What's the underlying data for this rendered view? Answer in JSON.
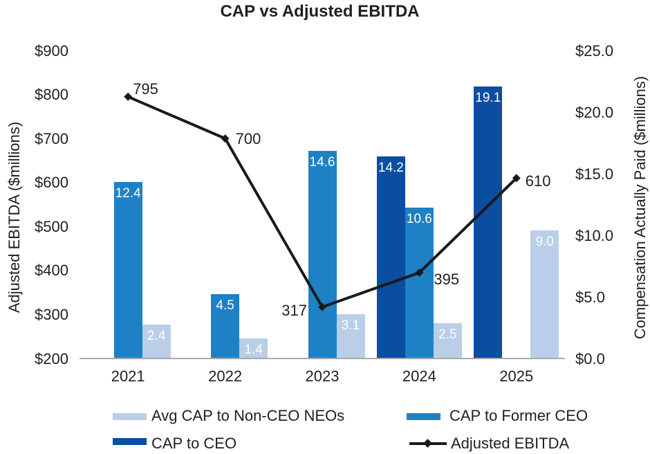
{
  "chart_data": {
    "type": "combo-bar-line",
    "title": "CAP vs Adjusted EBITDA",
    "categories": [
      "2021",
      "2022",
      "2023",
      "2024",
      "2025"
    ],
    "bar_series": [
      {
        "key": "ceo",
        "name": "CAP to CEO",
        "color": "#0b4da1",
        "axis": "right",
        "values": [
          null,
          null,
          null,
          14.2,
          19.1
        ],
        "labels": [
          "",
          "",
          "",
          "14.2",
          "19.1"
        ]
      },
      {
        "key": "former",
        "name": "CAP to Former CEO",
        "color": "#1f81c5",
        "axis": "right",
        "values": [
          12.4,
          4.5,
          14.6,
          10.6,
          null
        ],
        "labels": [
          "12.4",
          "4.5",
          "14.6",
          "10.6",
          ""
        ]
      },
      {
        "key": "neo",
        "name": "Avg CAP to Non-CEO NEOs",
        "color": "#bbcee9",
        "axis": "right",
        "values": [
          2.4,
          1.4,
          3.1,
          2.5,
          9.0
        ],
        "labels": [
          "2.4",
          "1.4",
          "3.1",
          "2.5",
          "9.0"
        ]
      }
    ],
    "line_series": {
      "key": "ebitda",
      "name": "Adjusted EBITDA",
      "color": "#1a1a1a",
      "axis": "left",
      "values": [
        795,
        700,
        317,
        395,
        610
      ],
      "labels": [
        "795",
        "700",
        "317",
        "395",
        "610"
      ]
    },
    "left_axis": {
      "title": "Adjusted EBITDA ($millions)",
      "min": 200,
      "max": 900,
      "ticks": [
        {
          "label": "$900",
          "value": 900
        },
        {
          "label": "$800",
          "value": 800
        },
        {
          "label": "$700",
          "value": 700
        },
        {
          "label": "$600",
          "value": 600
        },
        {
          "label": "$500",
          "value": 500
        },
        {
          "label": "$400",
          "value": 400
        },
        {
          "label": "$300",
          "value": 300
        },
        {
          "label": "$200",
          "value": 200
        }
      ]
    },
    "right_axis": {
      "title": "Compensation Actually Paid ($millions)",
      "min": 0,
      "max": 25,
      "ticks": [
        {
          "label": "$25.0",
          "value": 25
        },
        {
          "label": "$20.0",
          "value": 20
        },
        {
          "label": "$15.0",
          "value": 15
        },
        {
          "label": "$10.0",
          "value": 10
        },
        {
          "label": "$5.0",
          "value": 5
        },
        {
          "label": "$0.0",
          "value": 0
        }
      ]
    },
    "legend": [
      {
        "label": "Avg CAP to Non-CEO NEOs",
        "swatch": "neo"
      },
      {
        "label": "CAP to Former CEO",
        "swatch": "former"
      },
      {
        "label": "CAP to CEO",
        "swatch": "ceo"
      },
      {
        "label": "Adjusted EBITDA",
        "swatch": "line"
      }
    ],
    "colors": {
      "ceo": "#0b4da1",
      "former": "#1f81c5",
      "neo": "#bbcee9",
      "line": "#1a1a1a",
      "axis_line": "#a9a9a9",
      "text": "#1f1f1f",
      "bar_label": "#ffffff"
    }
  }
}
